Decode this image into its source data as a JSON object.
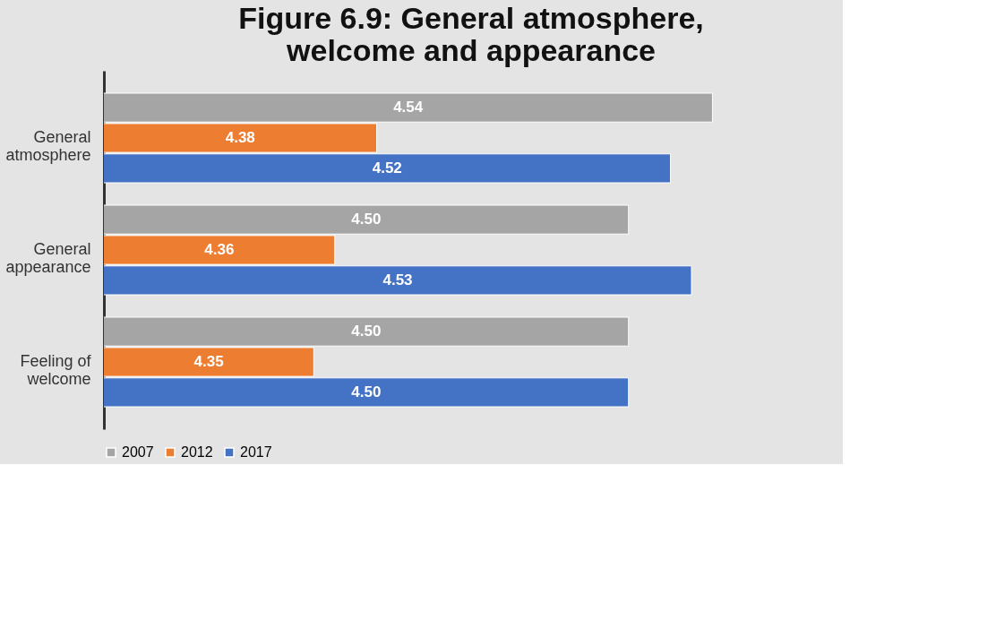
{
  "chart_data": {
    "type": "bar",
    "orientation": "horizontal",
    "title": "Figure 6.9: General atmosphere, welcome and appearance",
    "categories": [
      "General atmosphere",
      "General appearance",
      "Feeling of welcome"
    ],
    "series": [
      {
        "name": "2007",
        "color": "#a5a5a5",
        "values": [
          4.54,
          4.5,
          4.5
        ],
        "value_labels": [
          "4.54",
          "4.50",
          "4.50"
        ]
      },
      {
        "name": "2012",
        "color": "#ed7d31",
        "values": [
          4.38,
          4.36,
          4.35
        ],
        "value_labels": [
          "4.38",
          "4.36",
          "4.35"
        ]
      },
      {
        "name": "2017",
        "color": "#4472c4",
        "values": [
          4.52,
          4.53,
          4.5
        ],
        "value_labels": [
          "4.52",
          "4.53",
          "4.50"
        ]
      }
    ],
    "xlim": [
      4.25,
      4.6
    ],
    "tick_labels": "y",
    "legend": "bottom",
    "grid": false
  }
}
